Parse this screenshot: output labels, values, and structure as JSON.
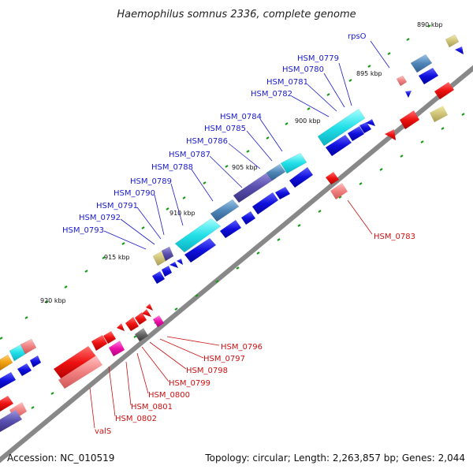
{
  "title": "Haemophilus somnus 2336, complete genome",
  "footer": {
    "accession": "Accession: NC_010519",
    "summary": "Topology: circular; Length: 2,263,857 bp; Genes: 2,044"
  },
  "scale_labels": [
    "890 kbp",
    "895 kbp",
    "900 kbp",
    "905 kbp",
    "910 kbp",
    "915 kbp",
    "920 kbp"
  ],
  "upper_genes": [
    "rpsO",
    "HSM_0779",
    "HSM_0780",
    "HSM_0781",
    "HSM_0782",
    "HSM_0784",
    "HSM_0785",
    "HSM_0786",
    "HSM_0787",
    "HSM_0788",
    "HSM_0789",
    "HSM_0790",
    "HSM_0791",
    "HSM_0792",
    "HSM_0793"
  ],
  "lower_genes": [
    "HSM_0783",
    "HSM_0796",
    "HSM_0797",
    "HSM_0798",
    "HSM_0799",
    "HSM_0800",
    "HSM_0801",
    "HSM_0802",
    "valS"
  ],
  "colors": {
    "forward_strand": "#1010dd",
    "reverse_strand": "#ee1111",
    "label_forward": "#1a1acc",
    "label_reverse": "#cc1111",
    "backbone": "#888888",
    "tick": "#119911"
  }
}
